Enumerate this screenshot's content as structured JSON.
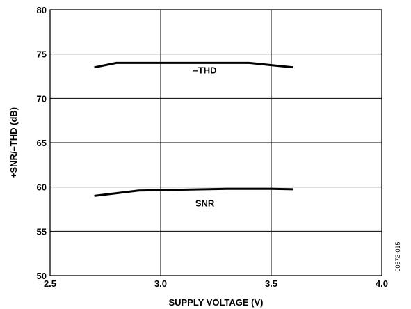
{
  "chart_data": {
    "type": "line",
    "xlabel": "SUPPLY VOLTAGE (V)",
    "ylabel": "+SNR/–THD (dB)",
    "xlim": [
      2.5,
      4.0
    ],
    "ylim": [
      50,
      80
    ],
    "x_ticks": [
      "2.5",
      "3.0",
      "3.5",
      "4.0"
    ],
    "y_ticks": [
      "50",
      "55",
      "60",
      "65",
      "70",
      "75",
      "80"
    ],
    "grid": true,
    "series": [
      {
        "name": "–THD",
        "points": [
          {
            "x": 2.7,
            "y": 73.5
          },
          {
            "x": 2.8,
            "y": 74.0
          },
          {
            "x": 3.0,
            "y": 74.0
          },
          {
            "x": 3.2,
            "y": 74.0
          },
          {
            "x": 3.4,
            "y": 74.0
          },
          {
            "x": 3.5,
            "y": 73.75
          },
          {
            "x": 3.6,
            "y": 73.5
          }
        ],
        "label_at": {
          "x": 3.2,
          "y": 72.8
        }
      },
      {
        "name": "SNR",
        "points": [
          {
            "x": 2.7,
            "y": 59.0
          },
          {
            "x": 2.8,
            "y": 59.3
          },
          {
            "x": 2.9,
            "y": 59.6
          },
          {
            "x": 3.0,
            "y": 59.65
          },
          {
            "x": 3.1,
            "y": 59.7
          },
          {
            "x": 3.2,
            "y": 59.75
          },
          {
            "x": 3.3,
            "y": 59.8
          },
          {
            "x": 3.4,
            "y": 59.8
          },
          {
            "x": 3.5,
            "y": 59.8
          },
          {
            "x": 3.6,
            "y": 59.75
          }
        ],
        "label_at": {
          "x": 3.2,
          "y": 57.8
        }
      }
    ],
    "line_color": "#000000",
    "figure_id": "00573-015"
  }
}
